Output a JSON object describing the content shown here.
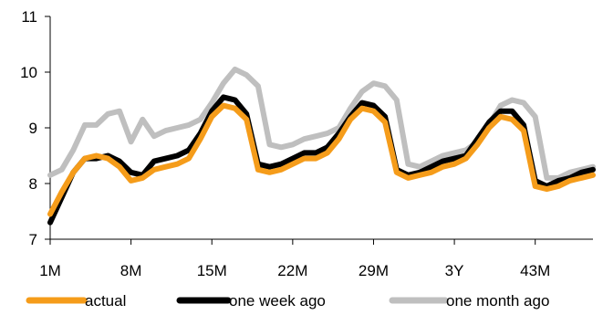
{
  "chart_data": {
    "type": "line",
    "x_tick_labels": [
      "1M",
      "8M",
      "15M",
      "22M",
      "29M",
      "3Y",
      "43M"
    ],
    "y_ticks": [
      7,
      8,
      9,
      10,
      11
    ],
    "ylim": [
      7,
      11
    ],
    "grid": false,
    "legend_position": "bottom",
    "series": [
      {
        "name": "actual",
        "color": "#F59C1A",
        "values": [
          7.45,
          7.85,
          8.2,
          8.45,
          8.5,
          8.45,
          8.3,
          8.05,
          8.1,
          8.25,
          8.3,
          8.35,
          8.45,
          8.8,
          9.2,
          9.4,
          9.35,
          9.15,
          8.25,
          8.2,
          8.25,
          8.35,
          8.45,
          8.45,
          8.55,
          8.8,
          9.15,
          9.35,
          9.3,
          9.1,
          8.2,
          8.1,
          8.15,
          8.2,
          8.3,
          8.35,
          8.45,
          8.7,
          9.0,
          9.2,
          9.15,
          8.95,
          7.95,
          7.9,
          7.95,
          8.05,
          8.1,
          8.15
        ]
      },
      {
        "name": "one week ago",
        "color": "#000000",
        "values": [
          7.3,
          7.75,
          8.2,
          8.45,
          8.45,
          8.5,
          8.4,
          8.2,
          8.15,
          8.4,
          8.45,
          8.5,
          8.6,
          8.9,
          9.3,
          9.55,
          9.5,
          9.25,
          8.35,
          8.3,
          8.35,
          8.45,
          8.55,
          8.55,
          8.65,
          8.9,
          9.2,
          9.45,
          9.4,
          9.2,
          8.25,
          8.15,
          8.2,
          8.3,
          8.4,
          8.45,
          8.5,
          8.8,
          9.1,
          9.3,
          9.3,
          9.05,
          8.05,
          7.95,
          8.05,
          8.1,
          8.2,
          8.25
        ]
      },
      {
        "name": "one month ago",
        "color": "#BFBFBF",
        "values": [
          8.15,
          8.25,
          8.6,
          9.05,
          9.05,
          9.25,
          9.3,
          8.75,
          9.15,
          8.85,
          8.95,
          9.0,
          9.05,
          9.15,
          9.45,
          9.8,
          10.05,
          9.95,
          9.75,
          8.7,
          8.65,
          8.7,
          8.8,
          8.85,
          8.9,
          9.0,
          9.35,
          9.65,
          9.8,
          9.75,
          9.5,
          8.35,
          8.3,
          8.4,
          8.5,
          8.55,
          8.6,
          8.75,
          9.05,
          9.4,
          9.5,
          9.45,
          9.2,
          8.1,
          8.1,
          8.2,
          8.25,
          8.3
        ]
      }
    ]
  }
}
